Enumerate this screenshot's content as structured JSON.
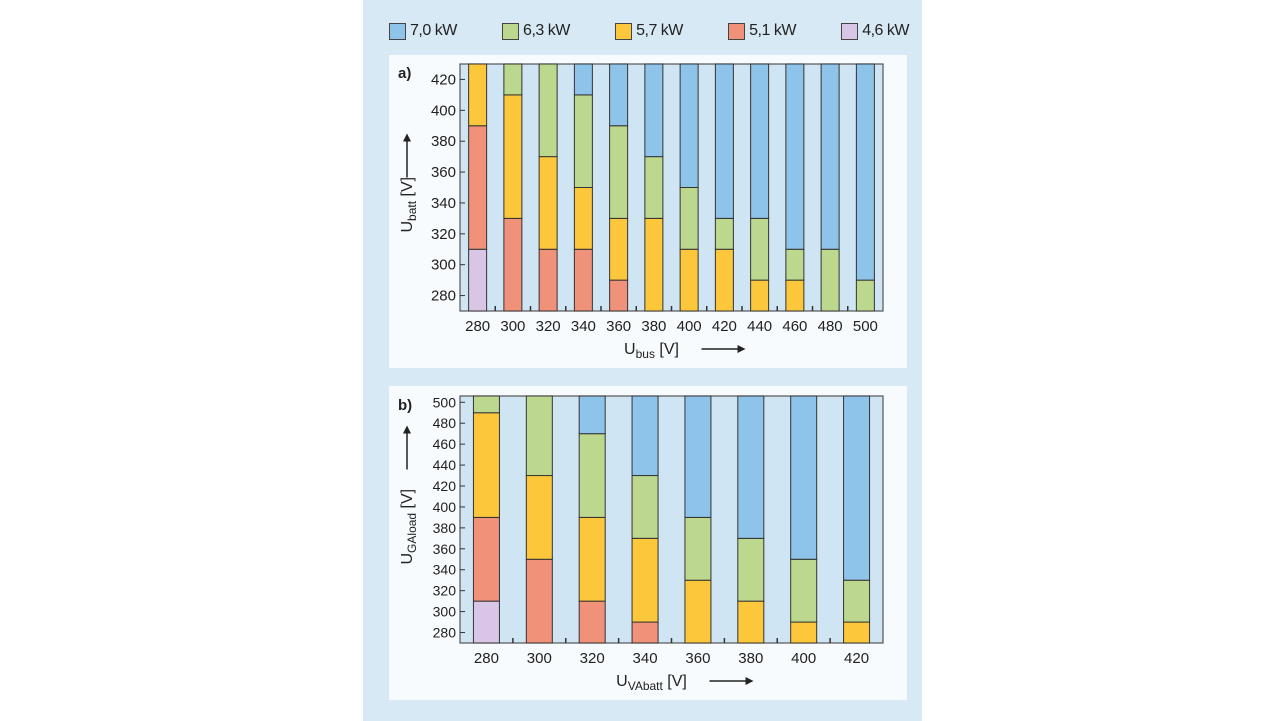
{
  "legend": [
    {
      "label": "7,0 kW",
      "color": "#8ec3ea"
    },
    {
      "label": "6,3 kW",
      "color": "#bcd88f"
    },
    {
      "label": "5,7 kW",
      "color": "#fcc73a"
    },
    {
      "label": "5,1 kW",
      "color": "#f0917a"
    },
    {
      "label": "4,6 kW",
      "color": "#d9c6e6"
    }
  ],
  "chart_data": [
    {
      "type": "bar",
      "stacked": true,
      "panel_label": "a)",
      "xlabel": {
        "main": "U",
        "sub": "bus",
        "unit": " [V]"
      },
      "ylabel": {
        "main": "U",
        "sub": "batt",
        "unit": " [V]"
      },
      "categories": [
        "280",
        "300",
        "320",
        "340",
        "360",
        "380",
        "400",
        "420",
        "440",
        "460",
        "480",
        "500"
      ],
      "ylim": [
        270,
        430
      ],
      "yticks": [
        280,
        300,
        320,
        340,
        360,
        380,
        400,
        420
      ],
      "series_order_bottom_to_top": [
        "4,6 kW",
        "5,1 kW",
        "5,7 kW",
        "6,3 kW",
        "7,0 kW"
      ],
      "ranges": [
        [
          [
            270,
            310
          ],
          [
            310,
            390
          ],
          [
            390,
            430
          ],
          null,
          null
        ],
        [
          null,
          [
            270,
            330
          ],
          [
            330,
            410
          ],
          [
            410,
            430
          ],
          null
        ],
        [
          null,
          [
            270,
            310
          ],
          [
            310,
            370
          ],
          [
            370,
            430
          ],
          null
        ],
        [
          null,
          [
            270,
            310
          ],
          [
            310,
            350
          ],
          [
            350,
            410
          ],
          [
            410,
            430
          ]
        ],
        [
          null,
          [
            270,
            290
          ],
          [
            290,
            330
          ],
          [
            330,
            390
          ],
          [
            390,
            430
          ]
        ],
        [
          null,
          null,
          [
            270,
            330
          ],
          [
            330,
            370
          ],
          [
            370,
            430
          ]
        ],
        [
          null,
          null,
          [
            270,
            310
          ],
          [
            310,
            350
          ],
          [
            350,
            430
          ]
        ],
        [
          null,
          null,
          [
            270,
            310
          ],
          [
            310,
            330
          ],
          [
            330,
            430
          ]
        ],
        [
          null,
          null,
          [
            270,
            290
          ],
          [
            290,
            330
          ],
          [
            330,
            430
          ]
        ],
        [
          null,
          null,
          [
            270,
            290
          ],
          [
            290,
            310
          ],
          [
            310,
            430
          ]
        ],
        [
          null,
          null,
          null,
          [
            270,
            310
          ],
          [
            310,
            430
          ]
        ],
        [
          null,
          null,
          null,
          [
            270,
            290
          ],
          [
            290,
            430
          ]
        ]
      ]
    },
    {
      "type": "bar",
      "stacked": true,
      "panel_label": "b)",
      "xlabel": {
        "main": "U",
        "sub": "VAbatt",
        "unit": " [V]"
      },
      "ylabel": {
        "main": "U",
        "sub": "GAload",
        "unit": " [V]"
      },
      "categories": [
        "280",
        "300",
        "320",
        "340",
        "360",
        "380",
        "400",
        "420"
      ],
      "ylim": [
        270,
        506
      ],
      "yticks": [
        280,
        300,
        320,
        340,
        360,
        380,
        400,
        420,
        440,
        460,
        480,
        500
      ],
      "series_order_bottom_to_top": [
        "4,6 kW",
        "5,1 kW",
        "5,7 kW",
        "6,3 kW",
        "7,0 kW"
      ],
      "ranges": [
        [
          [
            270,
            310
          ],
          [
            310,
            390
          ],
          [
            390,
            490
          ],
          [
            490,
            506
          ],
          null
        ],
        [
          null,
          [
            270,
            350
          ],
          [
            350,
            430
          ],
          [
            430,
            506
          ],
          null
        ],
        [
          null,
          [
            270,
            310
          ],
          [
            310,
            390
          ],
          [
            390,
            470
          ],
          [
            470,
            506
          ]
        ],
        [
          null,
          [
            270,
            290
          ],
          [
            290,
            370
          ],
          [
            370,
            430
          ],
          [
            430,
            506
          ]
        ],
        [
          null,
          null,
          [
            270,
            330
          ],
          [
            330,
            390
          ],
          [
            390,
            506
          ]
        ],
        [
          null,
          null,
          [
            270,
            310
          ],
          [
            310,
            370
          ],
          [
            370,
            506
          ]
        ],
        [
          null,
          null,
          [
            270,
            290
          ],
          [
            290,
            350
          ],
          [
            350,
            506
          ]
        ],
        [
          null,
          null,
          [
            270,
            290
          ],
          [
            290,
            330
          ],
          [
            330,
            506
          ]
        ]
      ]
    }
  ]
}
